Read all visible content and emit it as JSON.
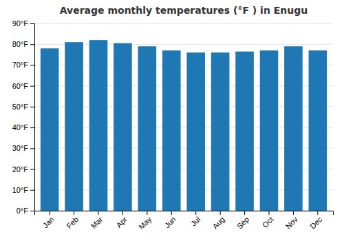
{
  "chart_data": {
    "type": "bar",
    "title": "Average monthly temperatures (°F ) in Enugu",
    "categories": [
      "Jan",
      "Feb",
      "Mar",
      "Apr",
      "May",
      "Jun",
      "Jul",
      "Aug",
      "Sep",
      "Oct",
      "Nov",
      "Dec"
    ],
    "values": [
      78,
      81,
      82,
      80.5,
      79,
      77,
      76,
      76,
      76.5,
      77,
      79,
      77
    ],
    "ylim": [
      0,
      90
    ],
    "yticks": [
      {
        "value": 0,
        "label": "0°F"
      },
      {
        "value": 10,
        "label": "10°F"
      },
      {
        "value": 20,
        "label": "20°F"
      },
      {
        "value": 30,
        "label": "30°F"
      },
      {
        "value": 40,
        "label": "40°F"
      },
      {
        "value": 50,
        "label": "50°F"
      },
      {
        "value": 60,
        "label": "60°F"
      },
      {
        "value": 70,
        "label": "70°F"
      },
      {
        "value": 80,
        "label": "80°F"
      },
      {
        "value": 90,
        "label": "90°F"
      }
    ],
    "grid": true
  }
}
